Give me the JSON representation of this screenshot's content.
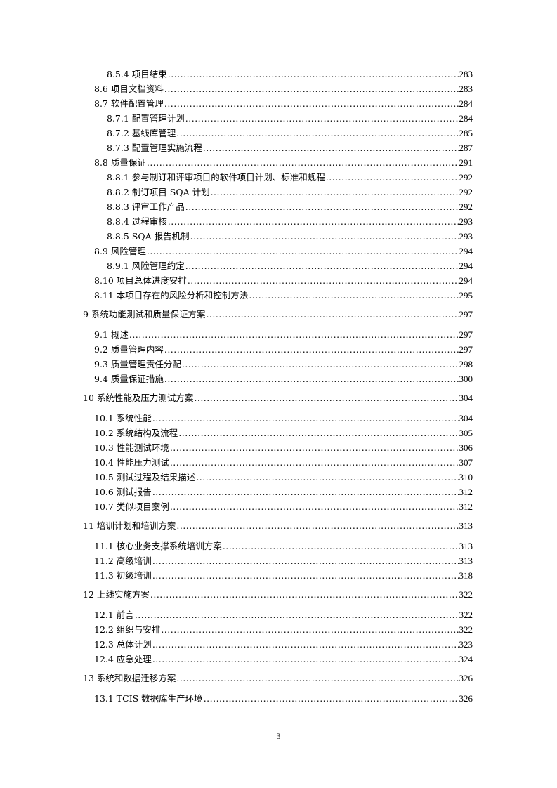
{
  "toc": [
    {
      "level": 3,
      "title": "8.5.4 项目结束",
      "page": "283"
    },
    {
      "level": 2,
      "title": "8.6 项目文档资料",
      "page": "283"
    },
    {
      "level": 2,
      "title": "8.7 软件配置管理",
      "page": "284"
    },
    {
      "level": 3,
      "title": "8.7.1 配置管理计划",
      "page": "284"
    },
    {
      "level": 3,
      "title": "8.7.2 基线库管理",
      "page": "285"
    },
    {
      "level": 3,
      "title": "8.7.3 配置管理实施流程",
      "page": "287"
    },
    {
      "level": 2,
      "title": "8.8 质量保证",
      "page": "291"
    },
    {
      "level": 3,
      "title": "8.8.1 参与制订和评审项目的软件项目计划、标准和规程",
      "page": "292"
    },
    {
      "level": 3,
      "title": "8.8.2 制订项目 SQA 计划",
      "page": "292"
    },
    {
      "level": 3,
      "title": "8.8.3 评审工作产品",
      "page": "292"
    },
    {
      "level": 3,
      "title": "8.8.4 过程审核",
      "page": "293"
    },
    {
      "level": 3,
      "title": "8.8.5 SQA 报告机制",
      "page": "293"
    },
    {
      "level": 2,
      "title": "8.9 风险管理",
      "page": "294"
    },
    {
      "level": 3,
      "title": "8.9.1 风险管理约定",
      "page": "294"
    },
    {
      "level": 2,
      "title": "8.10 项目总体进度安排",
      "page": "294"
    },
    {
      "level": 2,
      "title": "8.11 本项目存在的风险分析和控制方法",
      "page": "295"
    },
    {
      "level": 1,
      "title": "9 系统功能测试和质量保证方案",
      "page": "297"
    },
    {
      "level": 2,
      "title": "9.1 概述",
      "page": "297"
    },
    {
      "level": 2,
      "title": "9.2 质量管理内容",
      "page": "297"
    },
    {
      "level": 2,
      "title": "9.3 质量管理责任分配",
      "page": "298"
    },
    {
      "level": 2,
      "title": "9.4 质量保证措施",
      "page": "300"
    },
    {
      "level": 1,
      "title": "10 系统性能及压力测试方案",
      "page": "304"
    },
    {
      "level": 2,
      "title": "10.1 系统性能",
      "page": "304"
    },
    {
      "level": 2,
      "title": "10.2 系统结构及流程",
      "page": "305"
    },
    {
      "level": 2,
      "title": "10.3 性能测试环境",
      "page": "306"
    },
    {
      "level": 2,
      "title": "10.4 性能压力测试",
      "page": "307"
    },
    {
      "level": 2,
      "title": "10.5 测试过程及结果描述",
      "page": "310"
    },
    {
      "level": 2,
      "title": "10.6 测试报告",
      "page": "312"
    },
    {
      "level": 2,
      "title": "10.7 类似项目案例",
      "page": "312"
    },
    {
      "level": 1,
      "title": "11 培训计划和培训方案",
      "page": "313"
    },
    {
      "level": 2,
      "title": "11.1 核心业务支撑系统培训方案",
      "page": "313"
    },
    {
      "level": 2,
      "title": "11.2 高级培训",
      "page": "313"
    },
    {
      "level": 2,
      "title": "11.3 初级培训",
      "page": "318"
    },
    {
      "level": 1,
      "title": "12 上线实施方案",
      "page": "322"
    },
    {
      "level": 2,
      "title": "12.1 前言",
      "page": "322"
    },
    {
      "level": 2,
      "title": "12.2 组织与安排",
      "page": "322"
    },
    {
      "level": 2,
      "title": "12.3 总体计划",
      "page": "323"
    },
    {
      "level": 2,
      "title": "12.4 应急处理",
      "page": "324"
    },
    {
      "level": 1,
      "title": "13 系统和数据迁移方案",
      "page": "326"
    },
    {
      "level": 2,
      "title": "13.1 TCIS 数据库生产环境",
      "page": "326"
    }
  ],
  "page_number": "3"
}
